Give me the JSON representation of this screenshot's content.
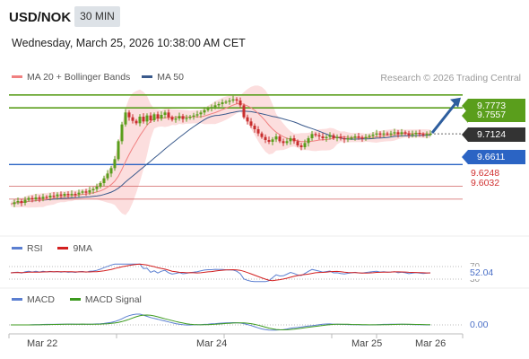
{
  "header": {
    "symbol": "USD/NOK",
    "interval": "30 MIN",
    "datetime": "Wednesday, March 25, 2026 10:38:00 AM CET",
    "copyright": "Research © 2026 Trading Central"
  },
  "legends": {
    "main": [
      {
        "label": "MA 20 + Bollinger Bands",
        "color": "#f08080"
      },
      {
        "label": "MA 50",
        "color": "#3a5a8c"
      }
    ],
    "rsi": [
      {
        "label": "RSI",
        "color": "#5b7fd1"
      },
      {
        "label": "9MA",
        "color": "#d32020"
      }
    ],
    "macd": [
      {
        "label": "MACD",
        "color": "#5b7fd1"
      },
      {
        "label": "MACD Signal",
        "color": "#3c9a1e"
      }
    ]
  },
  "colors": {
    "resistance": "#5a9e1c",
    "support": "#2b64c4",
    "target": "#d06060",
    "current": "#333333",
    "arrow": "#2e5e9e",
    "candle_up": "#5a9e1c",
    "candle_down": "#c82e2e",
    "band_fill": "#fcdede"
  },
  "chart_data": {
    "type": "candlestick",
    "price_axis": {
      "min": 9.54,
      "max": 9.84
    },
    "x_labels": [
      "Mar 22",
      "Mar 24",
      "Mar 25",
      "Mar 26"
    ],
    "levels": {
      "resistance": [
        9.7773,
        9.7557
      ],
      "current": 9.7124,
      "support": 9.6611,
      "targets": [
        9.6248,
        9.6032
      ]
    },
    "level_labels": {
      "r1": "9.7773",
      "r2": "9.7557",
      "current": "9.7124",
      "support": "9.6611",
      "t1": "9.6248",
      "t2": "9.6032"
    },
    "price_path": [
      9.595,
      9.598,
      9.6,
      9.597,
      9.602,
      9.605,
      9.603,
      9.606,
      9.604,
      9.607,
      9.606,
      9.609,
      9.608,
      9.611,
      9.609,
      9.612,
      9.61,
      9.612,
      9.611,
      9.614,
      9.616,
      9.614,
      9.618,
      9.62,
      9.624,
      9.63,
      9.638,
      9.646,
      9.655,
      9.67,
      9.7,
      9.728,
      9.748,
      9.74,
      9.734,
      9.73,
      9.741,
      9.733,
      9.743,
      9.735,
      9.745,
      9.738,
      9.744,
      9.748,
      9.74,
      9.736,
      9.738,
      9.742,
      9.737,
      9.739,
      9.741,
      9.743,
      9.745,
      9.748,
      9.752,
      9.755,
      9.757,
      9.76,
      9.762,
      9.765,
      9.766,
      9.768,
      9.77,
      9.768,
      9.76,
      9.74,
      9.733,
      9.726,
      9.72,
      9.713,
      9.707,
      9.702,
      9.699,
      9.703,
      9.708,
      9.7,
      9.697,
      9.7,
      9.705,
      9.7,
      9.693,
      9.69,
      9.697,
      9.705,
      9.712,
      9.71,
      9.708,
      9.705,
      9.707,
      9.71,
      9.705,
      9.707,
      9.705,
      9.703,
      9.705,
      9.706,
      9.708,
      9.706,
      9.705,
      9.707,
      9.709,
      9.711,
      9.713,
      9.711,
      9.713,
      9.712,
      9.713,
      9.715,
      9.712,
      9.715,
      9.713,
      9.71,
      9.712,
      9.714,
      9.712,
      9.71,
      9.712,
      9.7124
    ],
    "rsi": {
      "range": [
        30,
        70
      ],
      "ticks": [
        "70",
        "30"
      ],
      "value": 52.04,
      "value_label": "52.04"
    },
    "macd": {
      "value": 0.0,
      "value_label": "0.00"
    }
  }
}
